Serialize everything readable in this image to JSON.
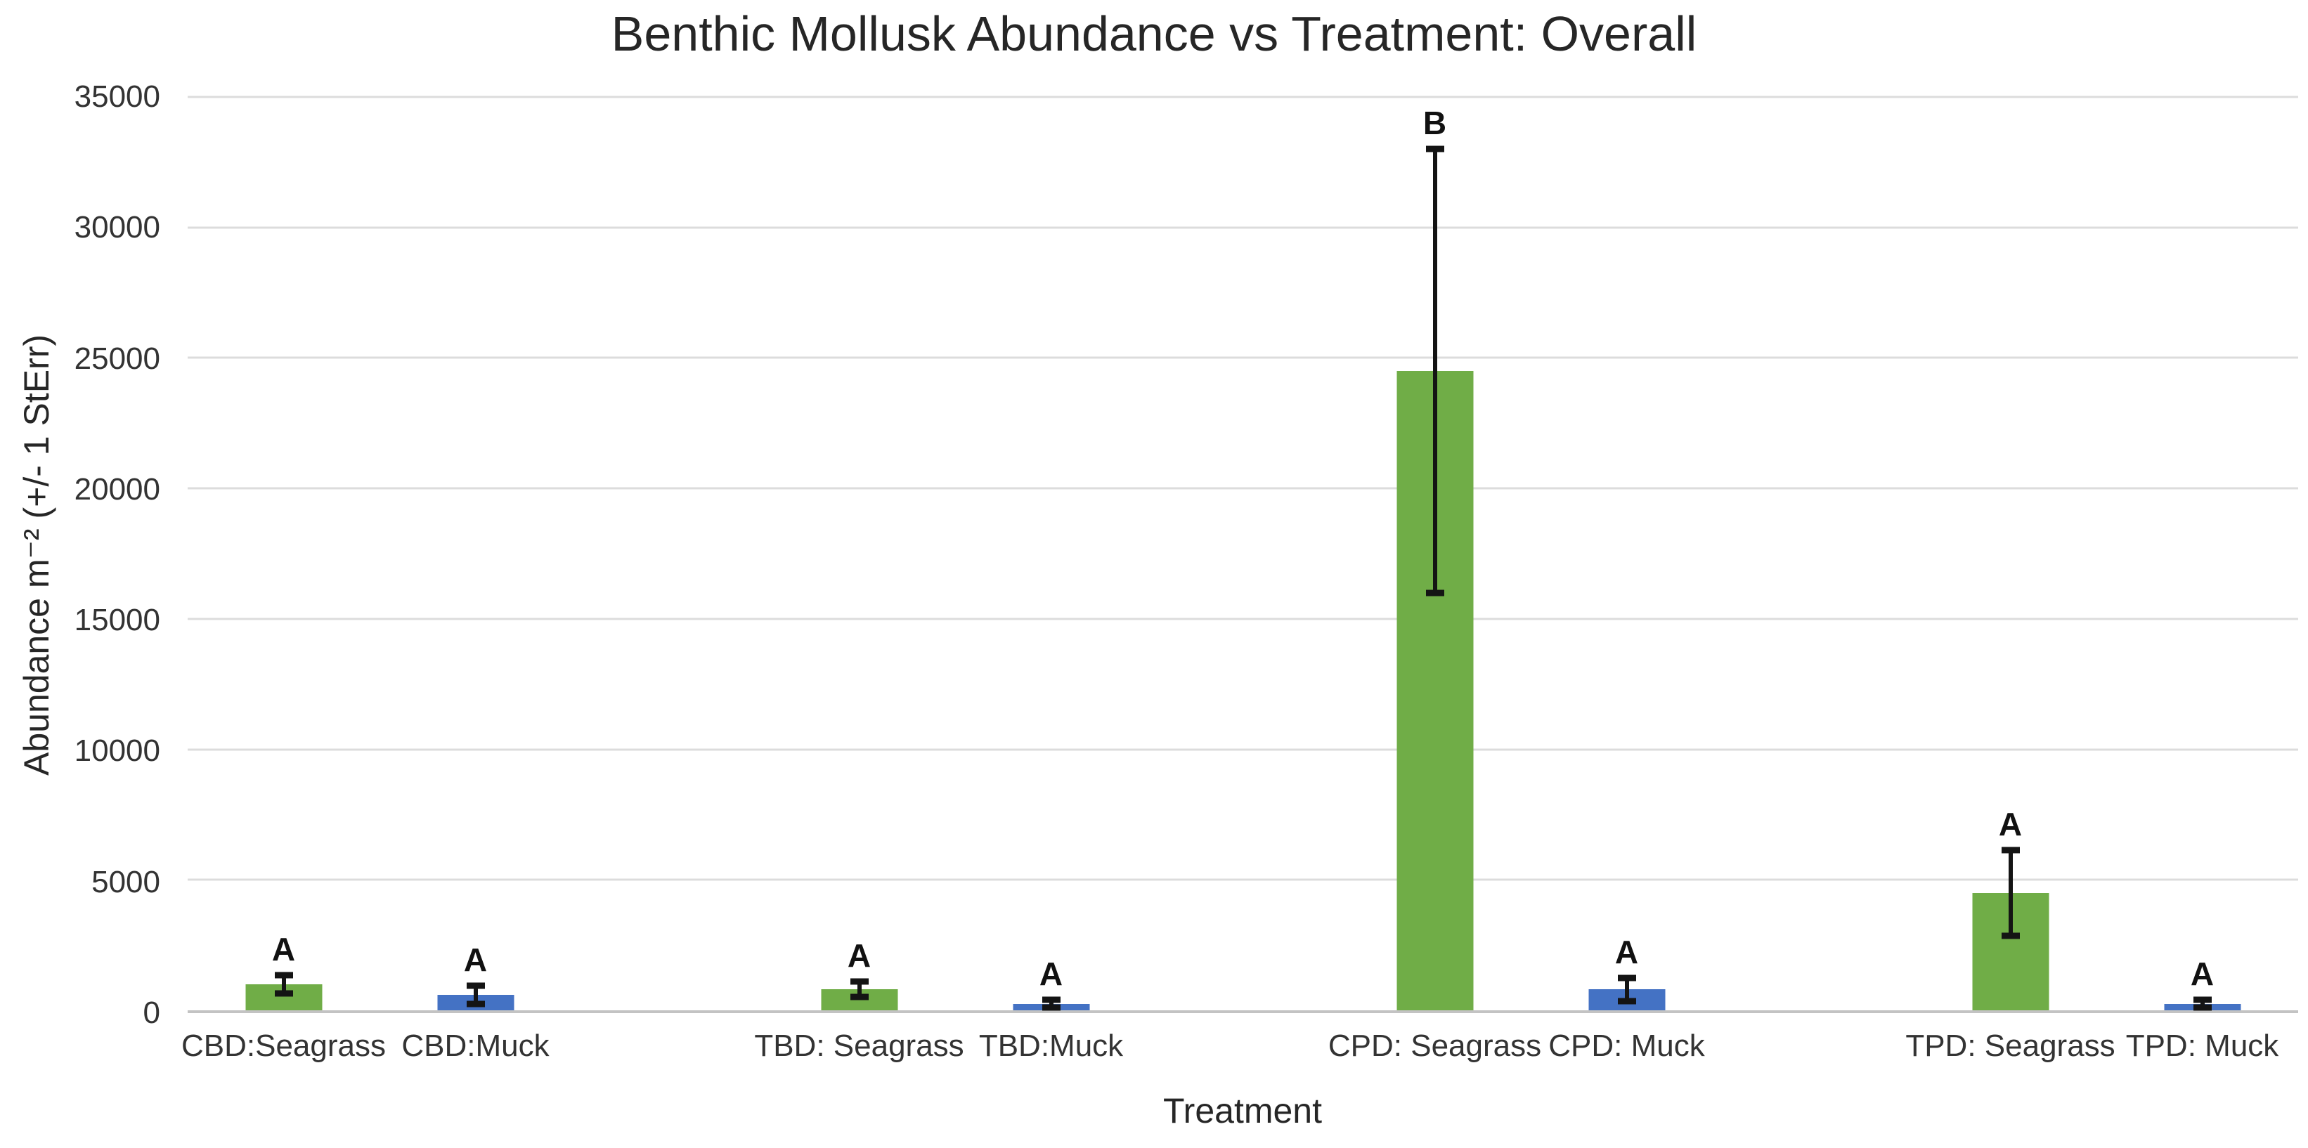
{
  "chart_data": {
    "type": "bar",
    "title": "Benthic Mollusk Abundance vs Treatment: Overall",
    "xlabel": "Treatment",
    "ylabel": "Abundance m⁻² (+/- 1 StErr)",
    "ylim": [
      0,
      35000
    ],
    "yticks": [
      0,
      5000,
      10000,
      15000,
      20000,
      25000,
      30000,
      35000
    ],
    "grid": "horizontal",
    "legend": "none",
    "error_bars": "plus-minus 1 standard error, black",
    "slots": 11,
    "series_colors": {
      "Seagrass": "#70AD47",
      "Muck": "#4472C4"
    },
    "points": [
      {
        "label": "CBD:Seagrass",
        "series": "Seagrass",
        "slot": 0,
        "value": 1000,
        "stderr": 350,
        "letter": "A"
      },
      {
        "label": "CBD:Muck",
        "series": "Muck",
        "slot": 1,
        "value": 600,
        "stderr": 350,
        "letter": "A"
      },
      {
        "label": "TBD: Seagrass",
        "series": "Seagrass",
        "slot": 3,
        "value": 800,
        "stderr": 300,
        "letter": "A"
      },
      {
        "label": "TBD:Muck",
        "series": "Muck",
        "slot": 4,
        "value": 250,
        "stderr": 150,
        "letter": "A"
      },
      {
        "label": "CPD: Seagrass",
        "series": "Seagrass",
        "slot": 6,
        "value": 24500,
        "stderr": 8500,
        "letter": "B"
      },
      {
        "label": "CPD: Muck",
        "series": "Muck",
        "slot": 7,
        "value": 800,
        "stderr": 450,
        "letter": "A"
      },
      {
        "label": "TPD: Seagrass",
        "series": "Seagrass",
        "slot": 9,
        "value": 4500,
        "stderr": 1650,
        "letter": "A"
      },
      {
        "label": "TPD: Muck",
        "series": "Muck",
        "slot": 10,
        "value": 250,
        "stderr": 150,
        "letter": "A"
      }
    ],
    "style_colors": {
      "gridline": "#dcdcdc",
      "axis_line": "#c3c3c3",
      "text": "#333333",
      "title_text": "#262626",
      "error_bar": "#141414",
      "background": "#ffffff"
    }
  }
}
